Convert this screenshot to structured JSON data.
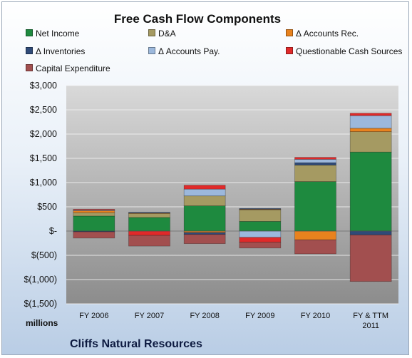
{
  "chart_data": {
    "type": "bar",
    "stacked": true,
    "title": "Free Cash Flow Components",
    "units_label": "millions",
    "company": "Cliffs Natural Resources",
    "categories": [
      "FY 2006",
      "FY 2007",
      "FY 2008",
      "FY 2009",
      "FY 2010",
      "FY & TTM 2011"
    ],
    "category_lines": [
      [
        "FY 2006"
      ],
      [
        "FY 2007"
      ],
      [
        "FY 2008"
      ],
      [
        "FY 2009"
      ],
      [
        "FY 2010"
      ],
      [
        "FY & TTM",
        "2011"
      ]
    ],
    "ylim": [
      -1500,
      3000
    ],
    "yticks": [
      -1500,
      -1000,
      -500,
      0,
      500,
      1000,
      1500,
      2000,
      2500,
      3000
    ],
    "ytick_labels": [
      "$(1,500)",
      "$(1,000)",
      "$(500)",
      "$-",
      "$500",
      "$1,000",
      "$1,500",
      "$2,000",
      "$2,500",
      "$3,000"
    ],
    "legend_placement": "top",
    "series": [
      {
        "name": "Net Income",
        "color": "#1e8a3f",
        "values": [
          310,
          280,
          520,
          200,
          1020,
          1630
        ]
      },
      {
        "name": "D&A",
        "color": "#a59a62",
        "values": [
          70,
          85,
          205,
          240,
          340,
          420
        ]
      },
      {
        "name": "Δ Accounts Rec.",
        "color": "#e8821e",
        "values": [
          40,
          5,
          -30,
          10,
          -180,
          70
        ]
      },
      {
        "name": "Δ Inventories",
        "color": "#2f4a78",
        "values": [
          -15,
          10,
          -40,
          15,
          50,
          -80
        ]
      },
      {
        "name": "Δ Accounts Pay.",
        "color": "#9cb8dc",
        "values": [
          15,
          10,
          140,
          -130,
          70,
          260
        ]
      },
      {
        "name": "Questionable Cash Sources",
        "color": "#e02a2a",
        "values": [
          15,
          -90,
          80,
          -100,
          40,
          50
        ]
      },
      {
        "name": "Capital Expenditure",
        "color": "#a24f4f",
        "values": [
          -130,
          -220,
          -190,
          -120,
          -290,
          -960
        ]
      }
    ]
  }
}
